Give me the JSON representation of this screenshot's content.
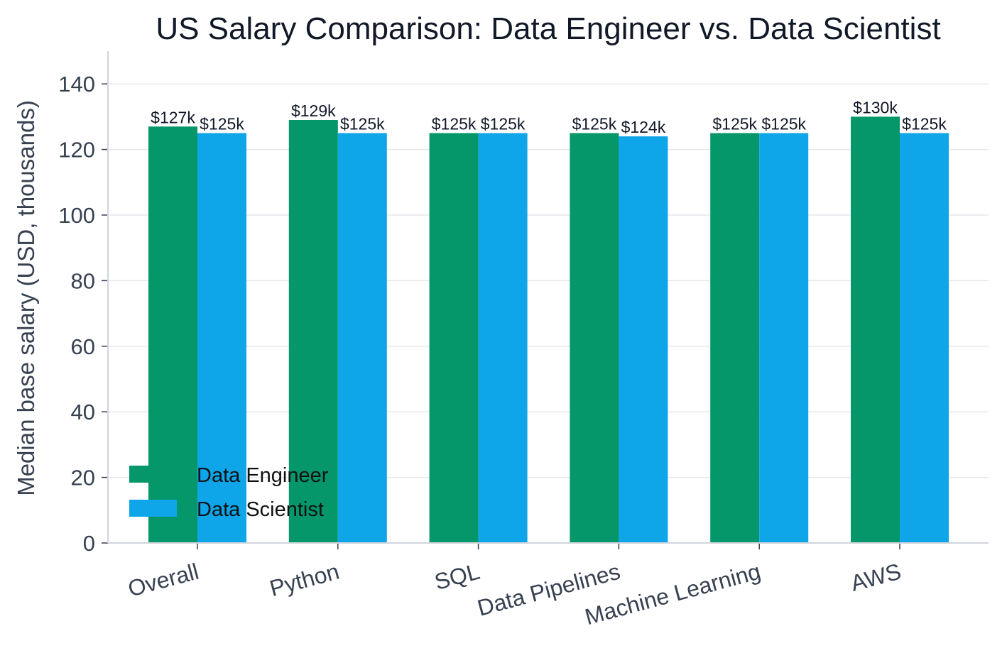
{
  "chart_data": {
    "type": "bar",
    "title": "US Salary Comparison: Data Engineer vs. Data Scientist",
    "xlabel": "",
    "ylabel": "Median base salary (USD, thousands)",
    "ylim": [
      0,
      150
    ],
    "yticks": [
      0,
      20,
      40,
      60,
      80,
      100,
      120,
      140
    ],
    "categories": [
      "Overall",
      "Python",
      "SQL",
      "Data Pipelines",
      "Machine Learning",
      "AWS"
    ],
    "series": [
      {
        "name": "Data Engineer",
        "color": "#059669",
        "values": [
          127,
          129,
          125,
          125,
          125,
          130
        ],
        "labels": [
          "$127k",
          "$129k",
          "$125k",
          "$125k",
          "$125k",
          "$130k"
        ]
      },
      {
        "name": "Data Scientist",
        "color": "#0EA5E9",
        "values": [
          125,
          125,
          125,
          124,
          125,
          125
        ],
        "labels": [
          "$125k",
          "$125k",
          "$125k",
          "$124k",
          "$125k",
          "$125k"
        ]
      }
    ],
    "grid": "horizontal",
    "legend_position": "bottom-left"
  }
}
